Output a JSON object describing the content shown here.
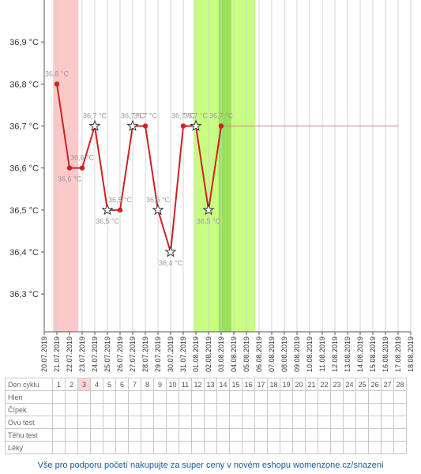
{
  "chart_data": {
    "type": "line",
    "y_unit_suffix": " °C",
    "y_tick_labels": [
      "36,3 °C",
      "36,4 °C",
      "36,5 °C",
      "36,6 °C",
      "36,7 °C",
      "36,8 °C",
      "36,9 °C"
    ],
    "y_ticks": [
      36.3,
      36.4,
      36.5,
      36.6,
      36.7,
      36.8,
      36.9
    ],
    "ylim": [
      36.21,
      37.0
    ],
    "x_dates": [
      "20.07.2019",
      "21.07.2019",
      "22.07.2019",
      "23.07.2019",
      "24.07.2019",
      "25.07.2019",
      "26.07.2019",
      "27.07.2019",
      "28.07.2019",
      "29.07.2019",
      "30.07.2019",
      "31.07.2019",
      "01.08.2019",
      "02.08.2019",
      "03.08.2019",
      "04.08.2019",
      "05.08.2019",
      "06.08.2019",
      "07.08.2019",
      "08.08.2019",
      "09.08.2019",
      "10.08.2019",
      "11.08.2019",
      "12.08.2019",
      "13.08.2019",
      "14.08.2019",
      "15.08.2019",
      "16.08.2019",
      "17.08.2019",
      "18.08.2019"
    ],
    "series": [
      {
        "values": [
          36.8,
          36.6,
          36.6,
          36.7,
          36.5,
          36.5,
          36.7,
          36.7,
          36.5,
          36.4,
          36.7,
          36.7,
          36.5,
          36.7
        ],
        "labels": [
          "36,8 °C",
          "36,6 °C",
          "36,6 °C",
          "36,7 °C",
          "36,5 °C",
          "36,5 °C",
          "36,7 °C",
          "36,7 °C",
          "36,5 °C",
          "36,4 °C",
          "36,7 °C",
          "36,7 °C",
          "36,5 °C",
          "36,7 °C"
        ],
        "markers": [
          "dot",
          "dot",
          "dot",
          "star",
          "star",
          "dot",
          "star",
          "dot",
          "star",
          "star",
          "dot",
          "star",
          "star",
          "dot"
        ],
        "start_index": 1
      }
    ],
    "projection": {
      "from_index": 14,
      "to_index": 28,
      "value": 36.7
    },
    "bands": [
      {
        "kind": "menstruation",
        "from_index": 0.7,
        "to_index": 2.7,
        "color": "#ffc8c8"
      },
      {
        "kind": "fertile",
        "from_index": 11.8,
        "to_index": 16.7,
        "color": "#c8ff80"
      },
      {
        "kind": "ovulation",
        "from_index": 13.8,
        "to_index": 14.8,
        "color": "#9ae05a"
      }
    ],
    "grid": true,
    "line_color": "#cc2222"
  },
  "table": {
    "header_label": "Den cyklu",
    "days": [
      "1",
      "2",
      "3",
      "4",
      "5",
      "6",
      "7",
      "8",
      "9",
      "10",
      "11",
      "12",
      "13",
      "14",
      "15",
      "16",
      "17",
      "18",
      "19",
      "20",
      "21",
      "22",
      "23",
      "24",
      "25",
      "26",
      "27",
      "28"
    ],
    "highlight_day_index": 2,
    "rows": [
      {
        "id": "hlen",
        "label": "Hlen"
      },
      {
        "id": "cipek",
        "label": "Čípek"
      },
      {
        "id": "ovu",
        "label": "Ovu test"
      },
      {
        "id": "tehu",
        "label": "Těhu test"
      },
      {
        "id": "leky",
        "label": "Léky"
      }
    ]
  },
  "footer": {
    "text": "Vše pro podporu početí nakupujte za super ceny v novém eshopu womenzone.cz/snazeni"
  }
}
